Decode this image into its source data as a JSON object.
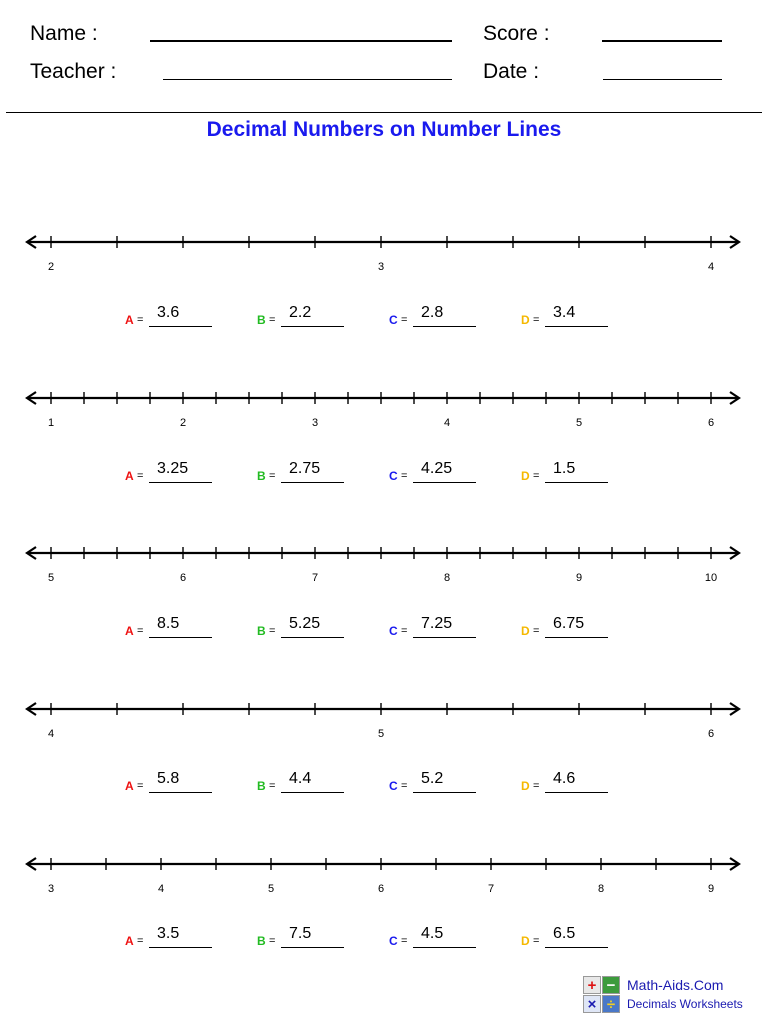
{
  "header": {
    "name_label": "Name :",
    "teacher_label": "Teacher :",
    "score_label": "Score :",
    "date_label": "Date :"
  },
  "title": "Decimal Numbers on Number Lines",
  "colors": {
    "A": "#ee1111",
    "B": "#22bb22",
    "C": "#1a1aee",
    "D": "#f5b800",
    "title": "#1a1aee"
  },
  "problems": [
    {
      "ticks": 10,
      "labels": [
        {
          "i": 0,
          "text": "2"
        },
        {
          "i": 5,
          "text": "3"
        },
        {
          "i": 10,
          "text": "4"
        }
      ],
      "answers": [
        {
          "letter": "A",
          "value": "3.6"
        },
        {
          "letter": "B",
          "value": "2.2"
        },
        {
          "letter": "C",
          "value": "2.8"
        },
        {
          "letter": "D",
          "value": "3.4"
        }
      ]
    },
    {
      "ticks": 20,
      "labels": [
        {
          "i": 0,
          "text": "1"
        },
        {
          "i": 4,
          "text": "2"
        },
        {
          "i": 8,
          "text": "3"
        },
        {
          "i": 12,
          "text": "4"
        },
        {
          "i": 16,
          "text": "5"
        },
        {
          "i": 20,
          "text": "6"
        }
      ],
      "answers": [
        {
          "letter": "A",
          "value": "3.25"
        },
        {
          "letter": "B",
          "value": "2.75"
        },
        {
          "letter": "C",
          "value": "4.25"
        },
        {
          "letter": "D",
          "value": "1.5"
        }
      ]
    },
    {
      "ticks": 20,
      "labels": [
        {
          "i": 0,
          "text": "5"
        },
        {
          "i": 4,
          "text": "6"
        },
        {
          "i": 8,
          "text": "7"
        },
        {
          "i": 12,
          "text": "8"
        },
        {
          "i": 16,
          "text": "9"
        },
        {
          "i": 20,
          "text": "10"
        }
      ],
      "answers": [
        {
          "letter": "A",
          "value": "8.5"
        },
        {
          "letter": "B",
          "value": "5.25"
        },
        {
          "letter": "C",
          "value": "7.25"
        },
        {
          "letter": "D",
          "value": "6.75"
        }
      ]
    },
    {
      "ticks": 10,
      "labels": [
        {
          "i": 0,
          "text": "4"
        },
        {
          "i": 5,
          "text": "5"
        },
        {
          "i": 10,
          "text": "6"
        }
      ],
      "answers": [
        {
          "letter": "A",
          "value": "5.8"
        },
        {
          "letter": "B",
          "value": "4.4"
        },
        {
          "letter": "C",
          "value": "5.2"
        },
        {
          "letter": "D",
          "value": "4.6"
        }
      ]
    },
    {
      "ticks": 12,
      "labels": [
        {
          "i": 0,
          "text": "3"
        },
        {
          "i": 2,
          "text": "4"
        },
        {
          "i": 4,
          "text": "5"
        },
        {
          "i": 6,
          "text": "6"
        },
        {
          "i": 8,
          "text": "7"
        },
        {
          "i": 10,
          "text": "8"
        },
        {
          "i": 12,
          "text": "9"
        }
      ],
      "answers": [
        {
          "letter": "A",
          "value": "3.5"
        },
        {
          "letter": "B",
          "value": "7.5"
        },
        {
          "letter": "C",
          "value": "4.5"
        },
        {
          "letter": "D",
          "value": "6.5"
        }
      ]
    }
  ],
  "logo": {
    "name": "Math-Aids.Com",
    "subtitle": "Decimals Worksheets",
    "icon": "math-operations-icon",
    "symbols": [
      "+",
      "−",
      "×",
      "÷"
    ]
  }
}
